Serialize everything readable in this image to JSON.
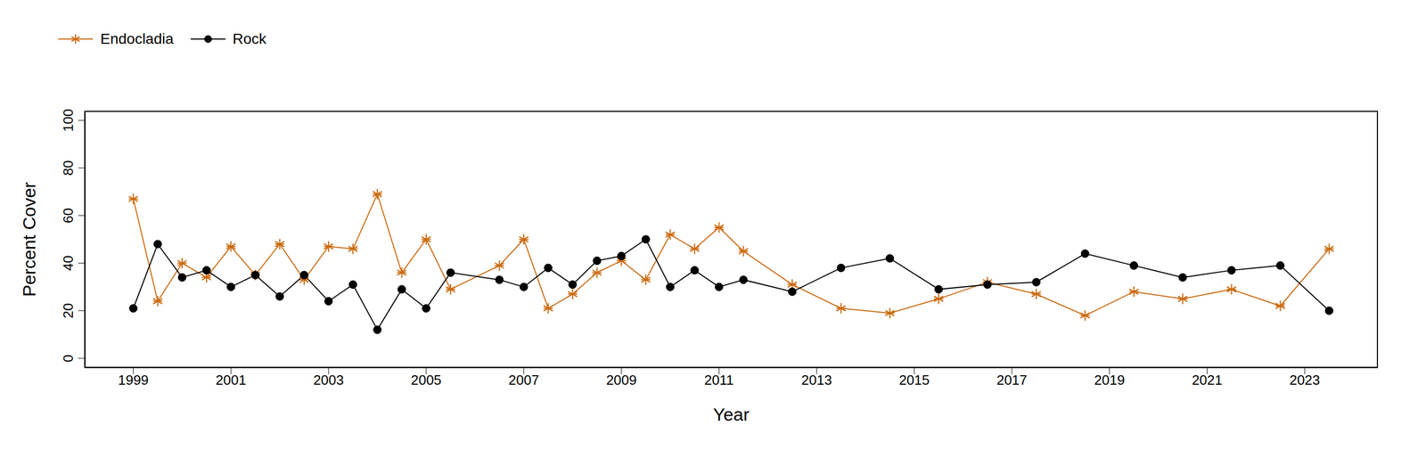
{
  "chart_data": {
    "type": "line",
    "x_label": "Year",
    "y_label": "Percent Cover",
    "x": [
      1999,
      1999.5,
      2000,
      2000.5,
      2001,
      2001.5,
      2002,
      2002.5,
      2003,
      2003.5,
      2004,
      2004.5,
      2005,
      2005.5,
      2006.5,
      2007,
      2007.5,
      2008,
      2008.5,
      2009,
      2009.5,
      2010,
      2010.5,
      2011,
      2011.5,
      2012.5,
      2013.5,
      2014.5,
      2015.5,
      2016.5,
      2017.5,
      2018.5,
      2019.5,
      2020.5,
      2021.5,
      2022.5,
      2023.5
    ],
    "series": [
      {
        "name": "Endocladia",
        "color": "#cc6a10",
        "marker": "asterisk",
        "values": [
          67,
          24,
          40,
          34,
          47,
          35,
          48,
          33,
          47,
          46,
          69,
          36,
          50,
          29,
          39,
          50,
          21,
          27,
          36,
          41,
          33,
          52,
          46,
          55,
          45,
          31,
          21,
          19,
          25,
          32,
          27,
          18,
          28,
          25,
          29,
          22,
          46
        ]
      },
      {
        "name": "Rock",
        "color": "#000000",
        "marker": "circle",
        "values": [
          21,
          48,
          34,
          37,
          30,
          35,
          26,
          35,
          24,
          31,
          12,
          29,
          21,
          36,
          33,
          30,
          38,
          31,
          41,
          43,
          50,
          30,
          37,
          30,
          33,
          28,
          38,
          42,
          29,
          31,
          32,
          44,
          39,
          34,
          37,
          39,
          20
        ]
      }
    ],
    "xlim": [
      1998,
      2024.5
    ],
    "xticks": [
      1999,
      2001,
      2003,
      2005,
      2007,
      2009,
      2011,
      2013,
      2015,
      2017,
      2019,
      2021,
      2023
    ],
    "ylim": [
      -4,
      104
    ],
    "yticks": [
      0,
      20,
      40,
      60,
      80,
      100
    ],
    "grid": false,
    "legend": "top-left"
  }
}
